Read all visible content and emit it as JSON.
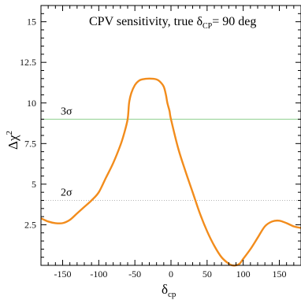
{
  "chart_data": {
    "type": "line",
    "title": {
      "text": "CPV sensitivity, true δ",
      "subscript": "CP",
      "suffix": "= 90 deg"
    },
    "xlabel": {
      "symbol": "δ",
      "subscript": "cp"
    },
    "ylabel": {
      "symbol": "Δχ",
      "superscript": "2"
    },
    "xlim": [
      -180,
      180
    ],
    "ylim": [
      0,
      16
    ],
    "xticks": [
      -150,
      -100,
      -50,
      0,
      50,
      100,
      150
    ],
    "yticks": [
      2.5,
      5,
      7.5,
      10,
      12.5,
      15
    ],
    "ytick_labels": [
      "2.5",
      "5",
      "7.5",
      "10",
      "12.5",
      "15"
    ],
    "grid": false,
    "series": [
      {
        "color": "#f28c1c",
        "x": [
          -180,
          -170,
          -160,
          -150,
          -140,
          -130,
          -120,
          -110,
          -100,
          -90,
          -80,
          -70,
          -65,
          -60,
          -58,
          -55,
          -50,
          -45,
          -40,
          -30,
          -20,
          -15,
          -10,
          -7,
          -5,
          -2,
          0,
          10,
          20,
          30,
          40,
          50,
          60,
          70,
          80,
          85,
          90,
          95,
          100,
          110,
          120,
          130,
          140,
          150,
          160,
          170,
          180
        ],
        "y": [
          2.9,
          2.7,
          2.6,
          2.6,
          2.8,
          3.2,
          3.6,
          4.0,
          4.5,
          5.4,
          6.3,
          7.4,
          8.1,
          9.0,
          10.0,
          10.6,
          11.1,
          11.35,
          11.45,
          11.5,
          11.45,
          11.3,
          11.0,
          10.5,
          10.0,
          9.5,
          9.0,
          7.2,
          5.8,
          4.5,
          3.2,
          2.1,
          1.2,
          0.5,
          0.1,
          0.0,
          0.0,
          0.1,
          0.4,
          1.0,
          1.7,
          2.4,
          2.7,
          2.75,
          2.6,
          2.4,
          2.3
        ]
      }
    ],
    "reference_lines": [
      {
        "y": 9,
        "label": "3σ",
        "color": "#8fd08f"
      },
      {
        "y": 4,
        "label": "2σ",
        "color": "#b5b5b5"
      }
    ]
  }
}
